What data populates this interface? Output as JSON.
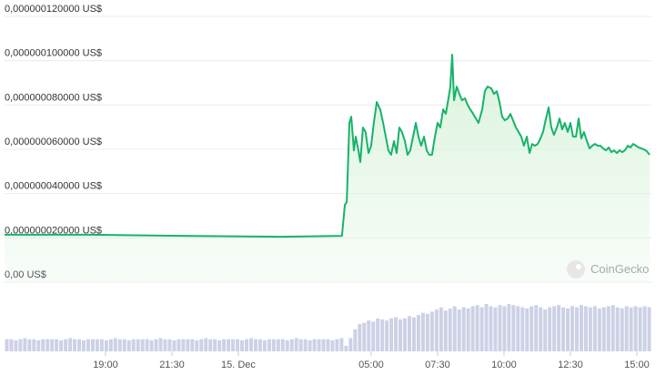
{
  "chart_data": {
    "type": "line",
    "color": "#18b36a",
    "fill_color": "#d6f2d9",
    "grid": true,
    "watermark": "CoinGecko",
    "xlim": [
      -8.8,
      15.55
    ],
    "xticks": [
      {
        "value": -5,
        "label": "19:00"
      },
      {
        "value": -2.5,
        "label": "21:30"
      },
      {
        "value": 0,
        "label": "15. Dec"
      },
      {
        "value": 5,
        "label": "05:00"
      },
      {
        "value": 7.5,
        "label": "07:30"
      },
      {
        "value": 10,
        "label": "10:00"
      },
      {
        "value": 12.5,
        "label": "12:30"
      },
      {
        "value": 15,
        "label": "15:00"
      }
    ],
    "ylim": [
      0,
      1.2e-07
    ],
    "yticks": [
      {
        "value": 0,
        "label": "0,00 US$"
      },
      {
        "value": 2e-08,
        "label": "0,000000020000 US$"
      },
      {
        "value": 4e-08,
        "label": "0,000000040000 US$"
      },
      {
        "value": 6e-08,
        "label": "0,000000060000 US$"
      },
      {
        "value": 8e-08,
        "label": "0,000000080000 US$"
      },
      {
        "value": 1e-07,
        "label": "0,000000100000 US$"
      },
      {
        "value": 1.2e-07,
        "label": "0,000000120000 US$"
      }
    ],
    "x": [
      -8.8,
      -5.55,
      -2.12,
      1.64,
      3.9,
      4.01,
      4.08,
      4.18,
      4.25,
      4.35,
      4.42,
      4.52,
      4.59,
      4.69,
      4.79,
      4.9,
      5.0,
      5.1,
      5.21,
      5.34,
      5.45,
      5.55,
      5.65,
      5.75,
      5.86,
      5.96,
      6.06,
      6.16,
      6.27,
      6.37,
      6.47,
      6.58,
      6.68,
      6.78,
      6.88,
      6.99,
      7.09,
      7.19,
      7.29,
      7.4,
      7.5,
      7.6,
      7.71,
      7.81,
      7.91,
      7.98,
      8.05,
      8.12,
      8.22,
      8.32,
      8.42,
      8.53,
      8.63,
      8.73,
      8.84,
      8.94,
      9.04,
      9.18,
      9.28,
      9.38,
      9.52,
      9.62,
      9.73,
      9.83,
      9.93,
      10.03,
      10.14,
      10.24,
      10.34,
      10.45,
      10.55,
      10.65,
      10.75,
      10.86,
      10.96,
      11.06,
      11.16,
      11.27,
      11.37,
      11.47,
      11.58,
      11.68,
      11.78,
      11.88,
      11.99,
      12.09,
      12.19,
      12.29,
      12.4,
      12.5,
      12.6,
      12.71,
      12.81,
      12.91,
      13.01,
      13.12,
      13.22,
      13.32,
      13.42,
      13.53,
      13.63,
      13.73,
      13.84,
      13.94,
      14.04,
      14.14,
      14.25,
      14.35,
      14.45,
      14.55,
      14.66,
      14.76,
      14.86,
      14.97,
      15.07,
      15.17,
      15.27,
      15.38,
      15.48
    ],
    "values": [
      2.14e-08,
      2.14e-08,
      2.09e-08,
      2.05e-08,
      2.09e-08,
      3.49e-08,
      3.61e-08,
      7.19e-08,
      7.47e-08,
      5.95e-08,
      6.57e-08,
      5.95e-08,
      5.42e-08,
      6.98e-08,
      6.78e-08,
      5.83e-08,
      6.16e-08,
      7.19e-08,
      8.13e-08,
      7.8e-08,
      7.19e-08,
      6.57e-08,
      5.95e-08,
      5.75e-08,
      6.37e-08,
      5.83e-08,
      6.98e-08,
      6.78e-08,
      6.37e-08,
      5.75e-08,
      5.95e-08,
      6.57e-08,
      7.19e-08,
      6.57e-08,
      6.16e-08,
      6.57e-08,
      5.95e-08,
      5.75e-08,
      5.75e-08,
      6.57e-08,
      7.19e-08,
      6.98e-08,
      7.8e-08,
      7.6e-08,
      8.3e-08,
      8.83e-08,
      1.027e-07,
      8.21e-08,
      8.83e-08,
      8.5e-08,
      8.21e-08,
      8.3e-08,
      8.01e-08,
      7.8e-08,
      7.6e-08,
      7.39e-08,
      7.19e-08,
      7.8e-08,
      8.62e-08,
      8.83e-08,
      8.75e-08,
      8.5e-08,
      8.62e-08,
      8.13e-08,
      7.47e-08,
      7.31e-08,
      7.39e-08,
      7.6e-08,
      7.31e-08,
      6.98e-08,
      6.78e-08,
      6.57e-08,
      6.16e-08,
      6.57e-08,
      5.83e-08,
      6.24e-08,
      6.16e-08,
      6.24e-08,
      6.49e-08,
      6.78e-08,
      7.39e-08,
      7.89e-08,
      6.98e-08,
      6.65e-08,
      6.98e-08,
      7.39e-08,
      6.9e-08,
      7.19e-08,
      6.78e-08,
      7.19e-08,
      6.57e-08,
      6.57e-08,
      7.39e-08,
      6.49e-08,
      6.78e-08,
      6.37e-08,
      6.04e-08,
      6.16e-08,
      6.24e-08,
      6.16e-08,
      6.16e-08,
      6.04e-08,
      5.95e-08,
      6.08e-08,
      5.87e-08,
      5.95e-08,
      5.83e-08,
      5.95e-08,
      5.87e-08,
      5.95e-08,
      6.16e-08,
      6.08e-08,
      6.24e-08,
      6.16e-08,
      6.08e-08,
      6.04e-08,
      5.99e-08,
      5.91e-08,
      5.75e-08
    ],
    "volume": {
      "color": "#cdd1e6",
      "values": [
        11,
        11,
        10,
        11,
        12,
        11,
        11,
        10,
        11,
        11,
        11,
        11,
        10,
        11,
        12,
        11,
        11,
        10,
        11,
        11,
        11,
        11,
        10,
        11,
        12,
        11,
        11,
        10,
        11,
        11,
        11,
        11,
        10,
        11,
        12,
        11,
        11,
        10,
        11,
        11,
        11,
        11,
        10,
        11,
        12,
        11,
        11,
        10,
        11,
        11,
        11,
        11,
        10,
        11,
        12,
        11,
        11,
        10,
        11,
        11,
        11,
        11,
        10,
        11,
        12,
        11,
        11,
        10,
        11,
        11,
        11,
        11,
        10,
        11,
        12,
        5,
        12,
        20,
        25,
        26,
        28,
        27,
        30,
        29,
        28,
        30,
        31,
        29,
        30,
        32,
        31,
        33,
        35,
        34,
        36,
        38,
        40,
        37,
        39,
        41,
        38,
        40,
        39,
        41,
        42,
        40,
        43,
        41,
        40,
        42,
        41,
        43,
        42,
        41,
        40,
        39,
        41,
        42,
        40,
        38,
        40,
        41,
        42,
        40,
        39,
        41,
        40,
        42,
        41,
        40,
        41,
        39,
        40,
        41,
        42,
        40,
        39,
        41,
        40,
        41,
        40,
        41,
        40
      ]
    }
  }
}
